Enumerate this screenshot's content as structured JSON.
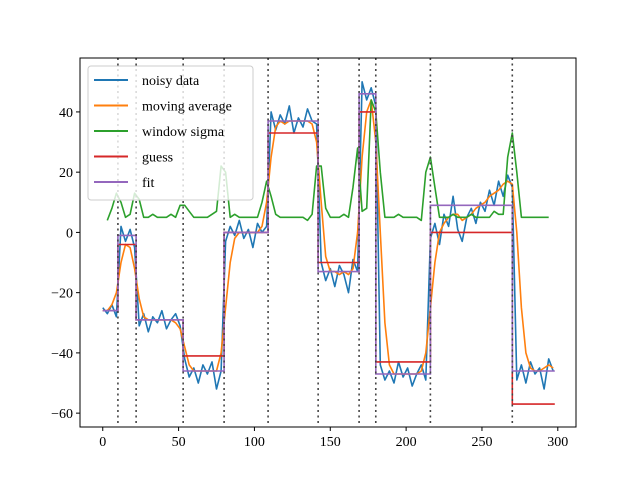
{
  "chart_data": {
    "type": "line",
    "title": "",
    "xlabel": "",
    "ylabel": "",
    "xlim": [
      -15,
      312
    ],
    "ylim": [
      -64.6,
      57.9
    ],
    "xticks": [
      0,
      50,
      100,
      150,
      200,
      250,
      300
    ],
    "yticks": [
      -60,
      -40,
      -20,
      0,
      20,
      40
    ],
    "xtick_labels": [
      "0",
      "50",
      "100",
      "150",
      "200",
      "250",
      "300"
    ],
    "ytick_labels": [
      "−60",
      "−40",
      "−20",
      "0",
      "20",
      "40"
    ],
    "legend_position": "upper-left",
    "x": [
      0,
      3,
      6,
      9,
      12,
      15,
      18,
      21,
      24,
      27,
      30,
      33,
      36,
      39,
      42,
      45,
      48,
      51,
      54,
      57,
      60,
      63,
      66,
      69,
      72,
      75,
      78,
      81,
      84,
      87,
      90,
      93,
      96,
      99,
      102,
      105,
      108,
      111,
      114,
      117,
      120,
      123,
      126,
      129,
      132,
      135,
      138,
      141,
      144,
      147,
      150,
      153,
      156,
      159,
      162,
      165,
      168,
      171,
      174,
      177,
      180,
      183,
      186,
      189,
      192,
      195,
      198,
      201,
      204,
      207,
      210,
      213,
      216,
      219,
      222,
      225,
      228,
      231,
      234,
      237,
      240,
      243,
      246,
      249,
      252,
      255,
      258,
      261,
      264,
      267,
      270,
      273,
      276,
      279,
      282,
      285,
      288,
      291,
      294,
      297
    ],
    "series": [
      {
        "name": "noisy data",
        "color": "#1f77b4",
        "values": [
          -25,
          -27,
          -24,
          -28,
          2,
          -3,
          1,
          -5,
          -31,
          -27,
          -33,
          -28,
          -30,
          -26,
          -32,
          -29,
          -27,
          -31,
          -42,
          -48,
          -45,
          -50,
          -44,
          -47,
          -43,
          -52,
          -46,
          -3,
          2,
          -1,
          4,
          -2,
          1,
          -5,
          3,
          0,
          2,
          40,
          34,
          39,
          36,
          42,
          33,
          38,
          35,
          41,
          37,
          36,
          -10,
          -16,
          -12,
          -18,
          -11,
          -14,
          -20,
          -9,
          -13,
          50,
          44,
          48,
          42,
          -44,
          -49,
          -46,
          -50,
          -43,
          -48,
          -45,
          -51,
          -47,
          -44,
          -49,
          -2,
          3,
          -4,
          6,
          2,
          12,
          1,
          -3,
          5,
          8,
          3,
          10,
          7,
          14,
          9,
          17,
          12,
          19,
          15,
          -49,
          -44,
          -50,
          -43,
          -47,
          -45,
          -52,
          -42,
          -46
        ]
      },
      {
        "name": "moving average",
        "color": "#ff7f0e",
        "values": [
          -26,
          -26,
          -24,
          -20,
          -10,
          -4,
          -5,
          -12,
          -22,
          -28,
          -29,
          -29,
          -29,
          -29,
          -29,
          -29,
          -30,
          -32,
          -38,
          -44,
          -46,
          -46,
          -46,
          -46,
          -46,
          -46,
          -40,
          -25,
          -10,
          -2,
          0,
          0,
          0,
          0,
          0,
          2,
          10,
          25,
          35,
          37,
          36,
          37,
          37,
          37,
          37,
          37,
          36,
          30,
          10,
          -8,
          -13,
          -13,
          -14,
          -13,
          -14,
          -12,
          0,
          25,
          40,
          44,
          30,
          0,
          -30,
          -44,
          -47,
          -47,
          -47,
          -47,
          -47,
          -47,
          -46,
          -40,
          -25,
          -10,
          0,
          3,
          5,
          6,
          6,
          4,
          5,
          6,
          8,
          9,
          10,
          12,
          13,
          14,
          16,
          17,
          16,
          0,
          -25,
          -40,
          -45,
          -46,
          -46,
          -45,
          -44,
          -45
        ]
      },
      {
        "name": "window sigma",
        "color": "#2ca02c",
        "values": [
          null,
          4,
          8,
          13,
          10,
          5,
          6,
          13,
          11,
          5,
          5,
          6,
          5,
          5,
          5,
          6,
          5,
          9,
          9,
          7,
          5,
          5,
          5,
          5,
          6,
          7,
          22,
          20,
          5,
          6,
          5,
          5,
          5,
          5,
          5,
          10,
          17,
          12,
          6,
          5,
          5,
          5,
          5,
          5,
          5,
          4,
          6,
          22,
          22,
          8,
          5,
          5,
          5,
          6,
          5,
          15,
          28,
          7,
          8,
          44,
          40,
          20,
          5,
          5,
          5,
          6,
          5,
          5,
          5,
          5,
          4,
          20,
          25,
          15,
          5,
          5,
          5,
          6,
          5,
          5,
          5,
          6,
          5,
          5,
          5,
          5,
          7,
          6,
          6,
          25,
          33,
          20,
          5,
          5,
          5,
          5,
          5,
          5,
          5,
          null
        ]
      }
    ],
    "steps": [
      {
        "name": "guess",
        "color": "#d62728",
        "breaks": [
          0,
          10,
          22,
          53,
          80,
          109,
          142,
          169,
          180,
          216,
          270,
          298
        ],
        "levels": [
          -26,
          -4,
          -29,
          -41,
          0,
          33,
          -10,
          40,
          -43,
          0,
          -57
        ]
      },
      {
        "name": "fit",
        "color": "#9467bd",
        "breaks": [
          0,
          10,
          22,
          53,
          80,
          109,
          142,
          169,
          180,
          216,
          270,
          298
        ],
        "levels": [
          -26,
          -1,
          -29,
          -46,
          0,
          37,
          -13,
          46,
          -47,
          9,
          -46
        ]
      }
    ],
    "vlines": [
      10,
      22,
      53,
      80,
      109,
      142,
      169,
      180,
      216,
      270
    ],
    "legend": [
      "noisy data",
      "moving average",
      "window sigma",
      "guess",
      "fit"
    ]
  }
}
